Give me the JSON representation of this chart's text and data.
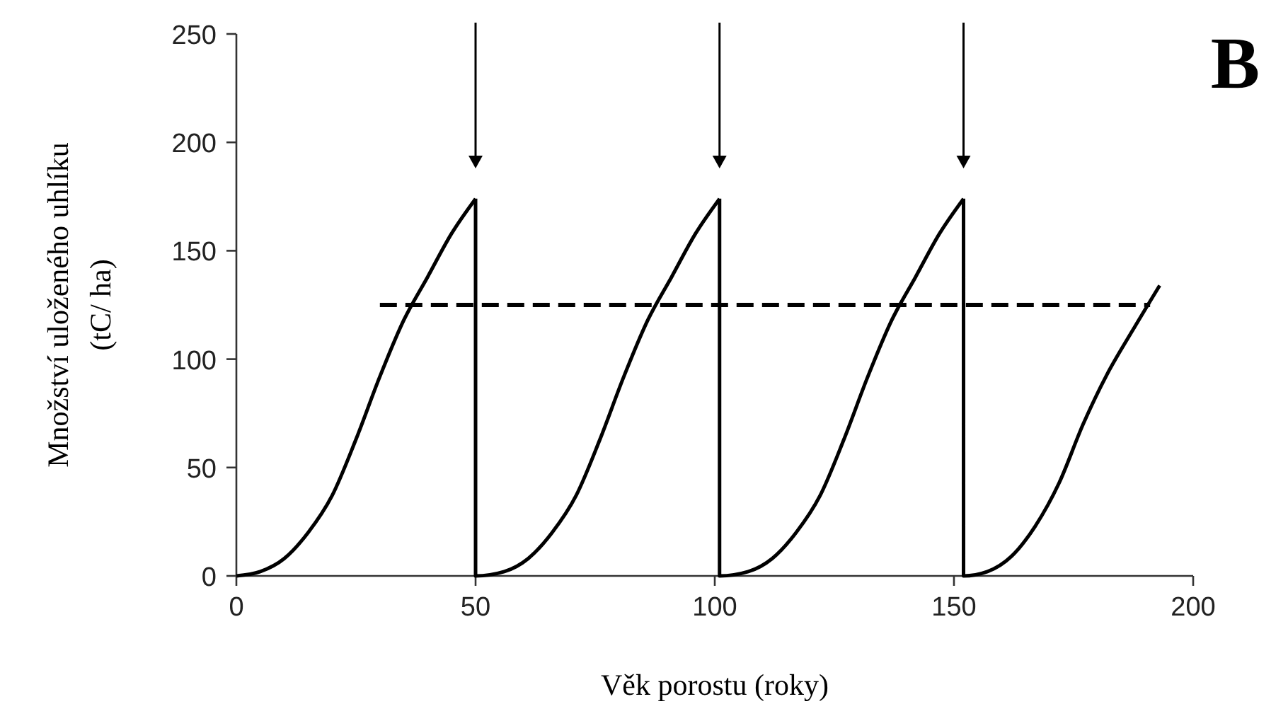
{
  "chart_data": {
    "type": "line",
    "xlabel": "Věk porostu (roky)",
    "ylabel": "Množství uloženého uhlíku\n(tC/ ha)",
    "annotations": [
      "B"
    ],
    "xlim": [
      0,
      200
    ],
    "xticks": [
      0,
      50,
      100,
      150,
      200
    ],
    "ylim": [
      0,
      250
    ],
    "yticks": [
      0,
      50,
      100,
      150,
      200,
      250
    ],
    "marker": "none",
    "series": [
      {
        "color": "#000000",
        "x": [
          0,
          5,
          10,
          15,
          20,
          25,
          30,
          35,
          40,
          45,
          50,
          50,
          56,
          61,
          66,
          71,
          76,
          81,
          86,
          91,
          96,
          101,
          101,
          107,
          112,
          117,
          122,
          127,
          132,
          137,
          142,
          147,
          152,
          152,
          157,
          162,
          167,
          172,
          177,
          182,
          187,
          193
        ],
        "values": [
          0,
          2,
          8,
          20,
          37,
          63,
          92,
          118,
          138,
          158,
          174,
          0,
          2,
          8,
          20,
          37,
          63,
          92,
          118,
          138,
          158,
          174,
          0,
          2,
          8,
          20,
          37,
          63,
          92,
          118,
          138,
          158,
          174,
          0,
          2,
          9,
          23,
          43,
          70,
          93,
          112,
          134
        ]
      },
      {
        "color": "#000000",
        "line_style": "dashed",
        "x": [
          30,
          191
        ],
        "values": [
          125,
          125
        ]
      }
    ]
  }
}
